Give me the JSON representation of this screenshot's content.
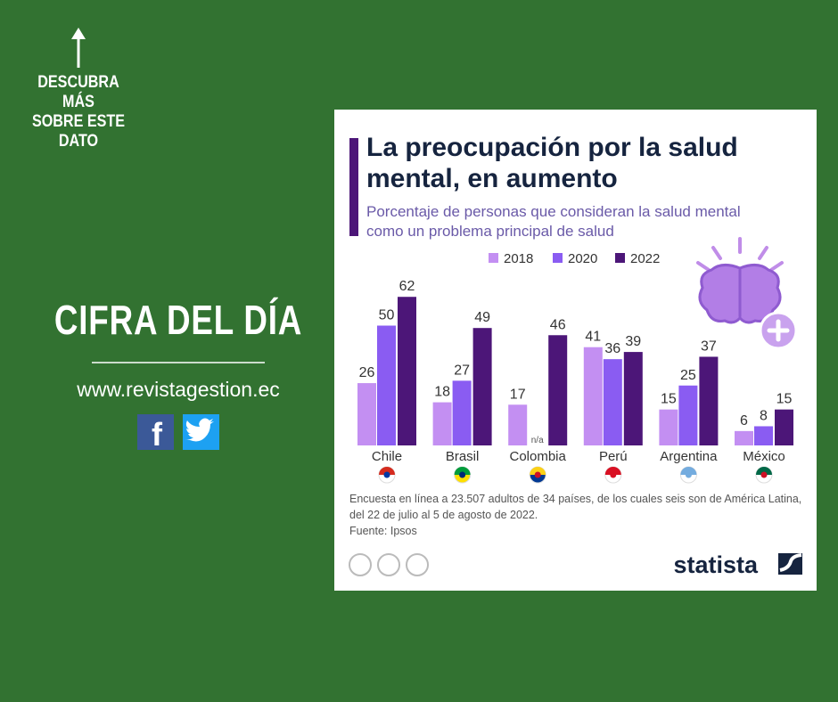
{
  "promo": {
    "cta_lines": [
      "DESCUBRA MÁS",
      "SOBRE ESTE",
      "DATO"
    ],
    "headline": "CIFRA DEL DÍA",
    "website": "www.revistagestion.ec"
  },
  "chart_data": {
    "type": "bar",
    "title": "La preocupación por la salud mental, en aumento",
    "subtitle": "Porcentaje de personas que consideran la salud mental como un problema principal de salud",
    "categories": [
      "Chile",
      "Brasil",
      "Colombia",
      "Perú",
      "Argentina",
      "México"
    ],
    "series": [
      {
        "name": "2018",
        "color": "#c38ff2",
        "values": [
          26,
          18,
          17,
          41,
          15,
          6
        ]
      },
      {
        "name": "2020",
        "color": "#8a5cf2",
        "values": [
          50,
          27,
          null,
          36,
          25,
          8
        ],
        "value_labels": [
          "50",
          "27",
          "n/a",
          "36",
          "25",
          "8"
        ]
      },
      {
        "name": "2022",
        "color": "#4c1678",
        "values": [
          62,
          49,
          46,
          39,
          37,
          15
        ]
      }
    ],
    "note": "Encuesta en línea a 23.507 adultos de 34 países, de los cuales seis son de América Latina, del 22 de julio al 5 de agosto de 2022.",
    "source": "Fuente: Ipsos",
    "brand": "statista"
  }
}
